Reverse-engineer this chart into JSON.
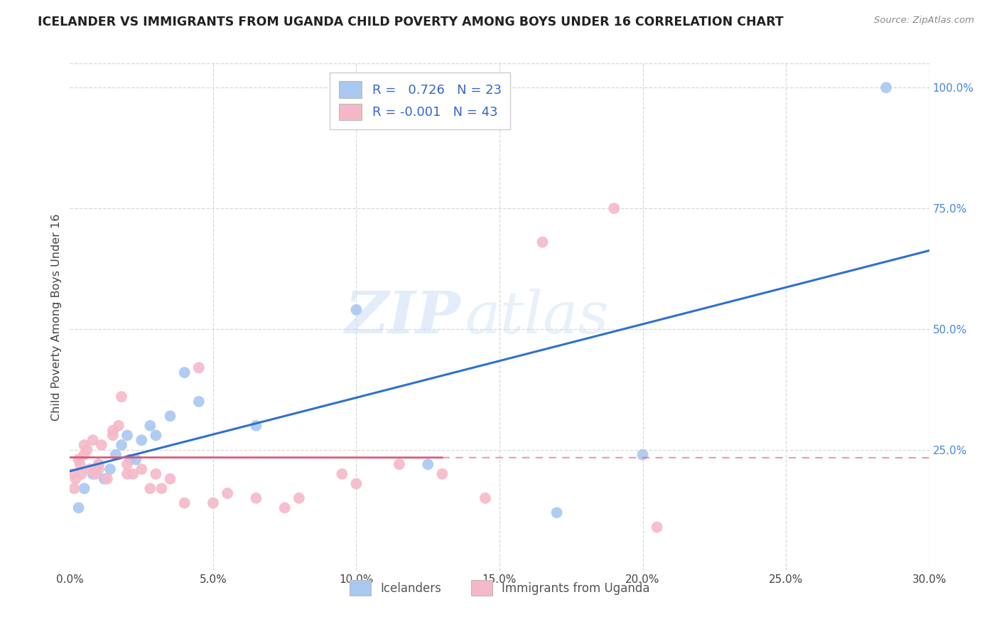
{
  "title": "ICELANDER VS IMMIGRANTS FROM UGANDA CHILD POVERTY AMONG BOYS UNDER 16 CORRELATION CHART",
  "source": "Source: ZipAtlas.com",
  "ylabel": "Child Poverty Among Boys Under 16",
  "xlabel_ticks": [
    "0.0%",
    "5.0%",
    "10.0%",
    "15.0%",
    "20.0%",
    "25.0%",
    "30.0%"
  ],
  "xlabel_vals": [
    0.0,
    5.0,
    10.0,
    15.0,
    20.0,
    25.0,
    30.0
  ],
  "ylabel_right_ticks": [
    "100.0%",
    "75.0%",
    "50.0%",
    "25.0%"
  ],
  "ylabel_right_vals": [
    100.0,
    75.0,
    50.0,
    25.0
  ],
  "xlim": [
    0.0,
    30.0
  ],
  "ylim": [
    0.0,
    105.0
  ],
  "R_icelander": 0.726,
  "N_icelander": 23,
  "R_uganda": -0.001,
  "N_uganda": 43,
  "icelander_color": "#a8c8f0",
  "uganda_color": "#f5b8c8",
  "icelander_line_color": "#3070d0",
  "uganda_line_color": "#e05878",
  "legend_label_1": "Icelanders",
  "legend_label_2": "Immigrants from Uganda",
  "watermark_zip": "ZIP",
  "watermark_atlas": "atlas",
  "icelander_x": [
    0.3,
    0.5,
    0.8,
    1.0,
    1.2,
    1.4,
    1.6,
    1.8,
    2.0,
    2.1,
    2.3,
    2.5,
    2.8,
    3.0,
    3.5,
    4.5,
    6.5,
    10.0,
    12.5,
    17.0,
    20.0,
    28.5,
    4.0
  ],
  "icelander_y": [
    13.0,
    17.0,
    20.0,
    22.0,
    19.0,
    21.0,
    24.0,
    26.0,
    28.0,
    23.0,
    23.0,
    27.0,
    30.0,
    28.0,
    32.0,
    35.0,
    30.0,
    54.0,
    22.0,
    12.0,
    24.0,
    100.0,
    41.0
  ],
  "uganda_x": [
    0.1,
    0.15,
    0.2,
    0.3,
    0.35,
    0.4,
    0.5,
    0.5,
    0.6,
    0.7,
    0.8,
    0.9,
    1.0,
    1.0,
    1.1,
    1.3,
    1.5,
    1.5,
    1.7,
    1.8,
    2.0,
    2.0,
    2.2,
    2.5,
    2.8,
    3.0,
    3.2,
    3.5,
    4.0,
    4.5,
    5.0,
    5.5,
    6.5,
    7.5,
    8.0,
    9.5,
    10.0,
    11.5,
    13.0,
    14.5,
    16.5,
    19.0,
    20.5
  ],
  "uganda_y": [
    20.0,
    17.0,
    19.0,
    23.0,
    22.0,
    20.0,
    24.0,
    26.0,
    25.0,
    21.0,
    27.0,
    20.0,
    22.0,
    21.0,
    26.0,
    19.0,
    28.0,
    29.0,
    30.0,
    36.0,
    22.0,
    20.0,
    20.0,
    21.0,
    17.0,
    20.0,
    17.0,
    19.0,
    14.0,
    42.0,
    14.0,
    16.0,
    15.0,
    13.0,
    15.0,
    20.0,
    18.0,
    22.0,
    20.0,
    15.0,
    68.0,
    75.0,
    9.0
  ],
  "uganda_solid_end": 13.0,
  "bg_color": "#ffffff",
  "grid_color": "#d8d8d8",
  "spine_color": "#dddddd"
}
